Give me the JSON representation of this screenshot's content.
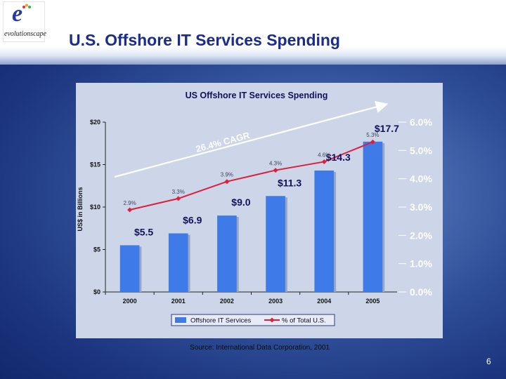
{
  "header": {
    "title": "U.S. Offshore IT Services Spending",
    "logo_text": "evolutionscape"
  },
  "chart_data": {
    "type": "bar",
    "title": "US Offshore IT Services Spending",
    "xlabel": "",
    "ylabel": "US$ in Billions",
    "categories": [
      "2000",
      "2001",
      "2002",
      "2003",
      "2004",
      "2005"
    ],
    "ylim": [
      0,
      20
    ],
    "y_ticks": [
      "$0",
      "$5",
      "$10",
      "$15",
      "$20"
    ],
    "y2lim": [
      0,
      6
    ],
    "y2_ticks": [
      "0.0%",
      "1.0%",
      "2.0%",
      "3.0%",
      "4.0%",
      "5.0%",
      "6.0%"
    ],
    "series": [
      {
        "name": "Offshore IT Services",
        "type": "bar",
        "values": [
          5.5,
          6.9,
          9.0,
          11.3,
          14.3,
          17.7
        ],
        "labels": [
          "$5.5",
          "$6.9",
          "$9.0",
          "$11.3",
          "$14.3",
          "$17.7"
        ],
        "color": "#3f7be8"
      },
      {
        "name": "% of Total U.S.",
        "type": "line",
        "axis": "right",
        "values": [
          2.9,
          3.3,
          3.9,
          4.3,
          4.6,
          5.3
        ],
        "labels": [
          "2.9%",
          "3.3%",
          "3.9%",
          "4.3%",
          "4.6%",
          "5.3%"
        ],
        "color": "#dd1f3c"
      }
    ],
    "annotations": [
      {
        "text": "26.4% CAGR"
      }
    ],
    "grid": false,
    "legend_position": "bottom"
  },
  "footer": {
    "source": "Source:  International Data Corporation, 2001",
    "page_number": "6"
  },
  "colors": {
    "title": "#1b2c8c",
    "bar": "#3f7be8",
    "line": "#dd1f3c",
    "panel": "#cdd5e8"
  }
}
